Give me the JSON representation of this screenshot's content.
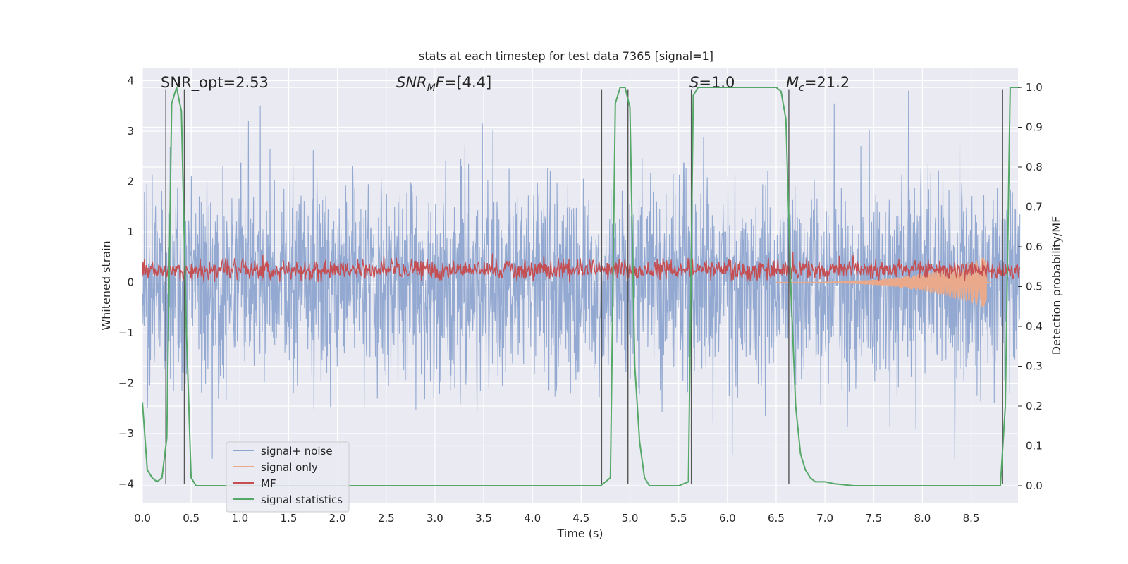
{
  "chart_data": {
    "type": "line",
    "title": "stats at each timestep for test data 7365 [signal=1]",
    "xlabel": "Time (s)",
    "ylabel_left": "Whitened strain",
    "ylabel_right": "Detection probability/MF",
    "xlim": [
      0.0,
      9.0
    ],
    "ylim_left": [
      -4.4,
      4.2
    ],
    "ylim_right": [
      -0.05,
      1.03
    ],
    "grid": true,
    "x_ticks": [
      "0.0",
      "0.5",
      "1.0",
      "1.5",
      "2.0",
      "2.5",
      "3.0",
      "3.5",
      "4.0",
      "4.5",
      "5.0",
      "5.5",
      "6.0",
      "6.5",
      "7.0",
      "7.5",
      "8.0",
      "8.5"
    ],
    "y_left_ticks": [
      "4",
      "3",
      "2",
      "1",
      "0",
      "−1",
      "−2",
      "−3",
      "−4"
    ],
    "y_right_ticks": [
      "1.0",
      "0.9",
      "0.8",
      "0.7",
      "0.6",
      "0.5",
      "0.4",
      "0.3",
      "0.2",
      "0.1",
      "0.0"
    ],
    "annotations": [
      {
        "id": "snr_opt",
        "text": "SNR_opt=2.53"
      },
      {
        "id": "snr_mf",
        "text": "SNR_MF=[4.4]"
      },
      {
        "id": "s",
        "text": "S=1.0"
      },
      {
        "id": "mc",
        "text": "M_c=21.2"
      }
    ],
    "legend": {
      "placement": "lower-left",
      "entries": [
        "signal+ noise",
        "signal only",
        "MF",
        "signal statistics"
      ]
    },
    "series": [
      {
        "name": "signal+ noise",
        "axis": "left",
        "color": "#8ea5cf",
        "description_kind": "noise",
        "amplitude": 1.0,
        "peak": 3.8,
        "trough": -3.6
      },
      {
        "name": "signal only",
        "axis": "left",
        "color": "#e9a98a",
        "chirp_start": 6.5,
        "chirp_end": 8.7,
        "chirp_peak": -0.55
      },
      {
        "name": "MF",
        "axis": "left",
        "color": "#c44e52",
        "mean": 0.25,
        "spread": 0.15,
        "max": 1.0
      },
      {
        "name": "signal statistics",
        "axis": "right",
        "color": "#55a868",
        "x": [
          0.0,
          0.05,
          0.1,
          0.15,
          0.2,
          0.25,
          0.3,
          0.35,
          0.4,
          0.45,
          0.5,
          0.55,
          0.6,
          0.7,
          4.6,
          4.7,
          4.75,
          4.8,
          4.85,
          4.9,
          4.95,
          5.0,
          5.05,
          5.1,
          5.15,
          5.2,
          5.3,
          5.5,
          5.6,
          5.65,
          5.7,
          5.75,
          5.8,
          6.0,
          6.5,
          6.55,
          6.6,
          6.65,
          6.7,
          6.75,
          6.8,
          6.85,
          6.9,
          6.95,
          7.0,
          7.1,
          7.3,
          7.5,
          8.0,
          8.5,
          8.8,
          8.85,
          8.9,
          8.95,
          9.0
        ],
        "y": [
          0.21,
          0.04,
          0.02,
          0.01,
          0.02,
          0.12,
          0.96,
          1.0,
          0.94,
          0.4,
          0.02,
          0.0,
          0.0,
          0.0,
          0.0,
          0.0,
          0.01,
          0.02,
          0.96,
          1.0,
          1.0,
          0.95,
          0.3,
          0.11,
          0.02,
          0.0,
          0.0,
          0.0,
          0.01,
          0.98,
          1.0,
          1.0,
          1.0,
          1.0,
          1.0,
          0.99,
          0.92,
          0.5,
          0.2,
          0.08,
          0.04,
          0.02,
          0.01,
          0.01,
          0.01,
          0.005,
          0.0,
          0.0,
          0.0,
          0.0,
          0.0,
          0.2,
          1.0,
          1.0,
          1.0
        ]
      }
    ],
    "vertical_lines_x": [
      0.24,
      0.43,
      4.71,
      4.98,
      5.63,
      6.63,
      8.82
    ]
  }
}
